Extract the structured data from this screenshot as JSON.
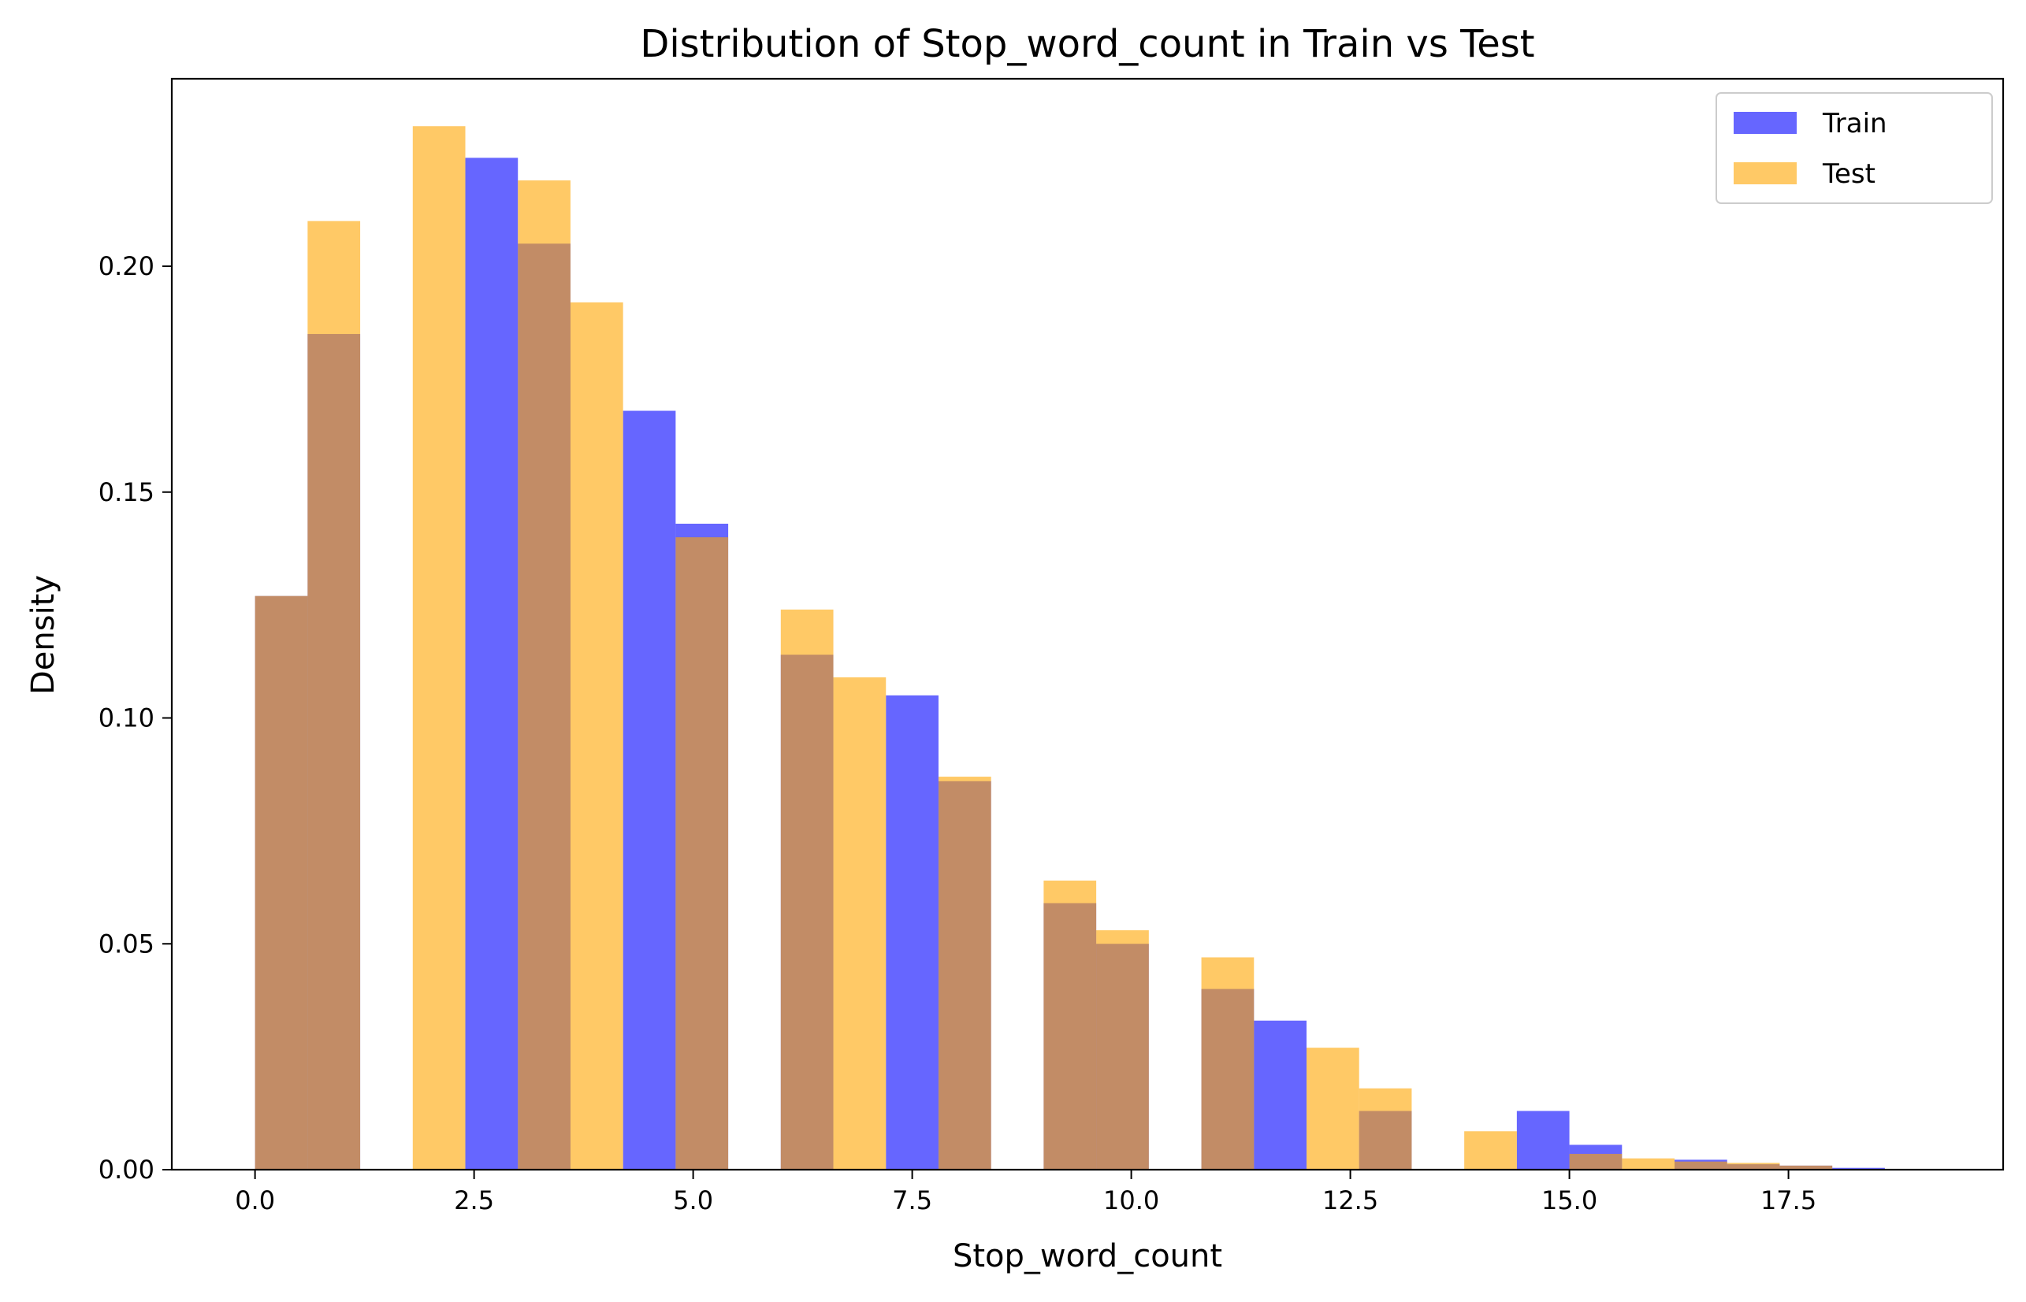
{
  "chart_data": {
    "type": "bar",
    "title": "Distribution of Stop_word_count in Train vs Test",
    "xlabel": "Stop_word_count",
    "ylabel": "Density",
    "xlim": [
      -0.95,
      19.95
    ],
    "ylim": [
      0,
      0.2415
    ],
    "xticks": [
      0.0,
      2.5,
      5.0,
      7.5,
      10.0,
      12.5,
      15.0,
      17.5
    ],
    "xtick_labels": [
      "0.0",
      "2.5",
      "5.0",
      "7.5",
      "10.0",
      "12.5",
      "15.0",
      "17.5"
    ],
    "yticks": [
      0.0,
      0.05,
      0.1,
      0.15,
      0.2
    ],
    "ytick_labels": [
      "0.00",
      "0.05",
      "0.10",
      "0.15",
      "0.20"
    ],
    "grid": false,
    "legend_position": "top-right",
    "series": [
      {
        "name": "Train",
        "color": "#0000ff",
        "opacity": 0.6,
        "bin_width": 0.6,
        "bin_starts": [
          0.0,
          0.6,
          1.2,
          1.8,
          2.4,
          3.0,
          3.6,
          4.2,
          4.8,
          5.4,
          6.0,
          6.6,
          7.2,
          7.8,
          8.4,
          9.0,
          9.6,
          10.2,
          10.8,
          11.4,
          12.0,
          12.6,
          13.2,
          13.8,
          14.4,
          15.0,
          15.6,
          16.2,
          16.8,
          17.4,
          18.0
        ],
        "values": [
          0.127,
          0.185,
          0,
          0,
          0.224,
          0.205,
          0,
          0.168,
          0.143,
          0,
          0.114,
          0,
          0.105,
          0.086,
          0,
          0.059,
          0.05,
          0,
          0.04,
          0.033,
          0,
          0.013,
          0,
          0,
          0.013,
          0.0055,
          0,
          0.0022,
          0.0012,
          0.0009,
          0.0004
        ]
      },
      {
        "name": "Test",
        "color": "#ffa500",
        "opacity": 0.6,
        "bin_width": 0.6,
        "bin_starts": [
          0.0,
          0.6,
          1.2,
          1.8,
          2.4,
          3.0,
          3.6,
          4.2,
          4.8,
          5.4,
          6.0,
          6.6,
          7.2,
          7.8,
          8.4,
          9.0,
          9.6,
          10.2,
          10.8,
          11.4,
          12.0,
          12.6,
          13.2,
          13.8,
          14.4,
          15.0,
          15.6,
          16.2,
          16.8,
          17.4,
          18.0
        ],
        "values": [
          0.127,
          0.21,
          0,
          0.231,
          0,
          0.219,
          0.192,
          0,
          0.14,
          0,
          0.124,
          0.109,
          0,
          0.087,
          0,
          0.064,
          0.053,
          0,
          0.047,
          0,
          0.027,
          0.018,
          0,
          0.0085,
          0,
          0.0035,
          0.0025,
          0.0018,
          0.0015,
          0.0009,
          0
        ]
      }
    ]
  }
}
